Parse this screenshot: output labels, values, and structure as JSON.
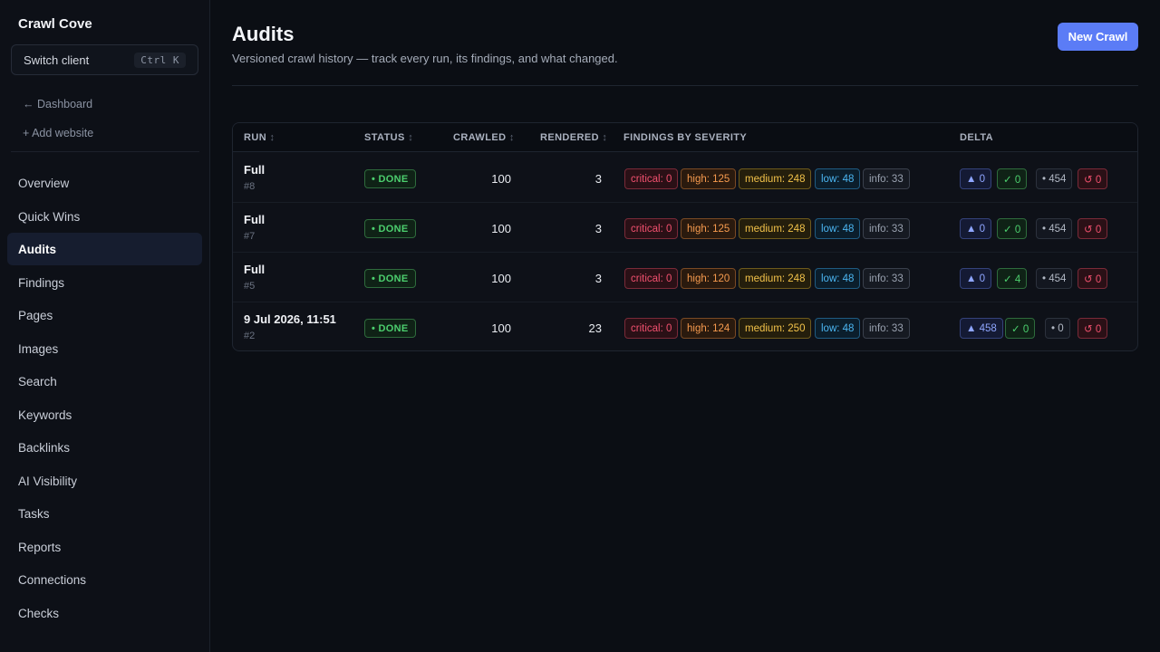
{
  "brand": "Crawl Cove",
  "switch_client": {
    "label": "Switch client",
    "shortcut": "Ctrl K"
  },
  "sub_links": {
    "dashboard": "← Dashboard",
    "add_website": "+ Add website"
  },
  "nav": [
    {
      "label": "Overview",
      "active": false
    },
    {
      "label": "Quick Wins",
      "active": false
    },
    {
      "label": "Audits",
      "active": true
    },
    {
      "label": "Findings",
      "active": false
    },
    {
      "label": "Pages",
      "active": false
    },
    {
      "label": "Images",
      "active": false
    },
    {
      "label": "Search",
      "active": false
    },
    {
      "label": "Keywords",
      "active": false
    },
    {
      "label": "Backlinks",
      "active": false
    },
    {
      "label": "AI Visibility",
      "active": false
    },
    {
      "label": "Tasks",
      "active": false
    },
    {
      "label": "Reports",
      "active": false
    },
    {
      "label": "Connections",
      "active": false
    },
    {
      "label": "Checks",
      "active": false
    }
  ],
  "page": {
    "title": "Audits",
    "subtitle": "Versioned crawl history — track every run, its findings, and what changed.",
    "new_crawl": "New Crawl"
  },
  "table": {
    "headers": {
      "run": "RUN",
      "status": "STATUS",
      "crawled": "CRAWLED",
      "rendered": "RENDERED",
      "findings": "FINDINGS BY SEVERITY",
      "delta": "DELTA",
      "sort_glyph": "↕"
    },
    "rows": [
      {
        "title": "Full",
        "num": "#8",
        "status": "• DONE",
        "crawled": "100",
        "rendered": "3",
        "critical": "critical: 0",
        "high": "high: 125",
        "medium": "medium: 248",
        "low": "low: 48",
        "info": "info: 33",
        "d_new": "▲ 0",
        "d_fixed": "✓ 0",
        "d_persist": "• 454",
        "d_regress": "↺ 0"
      },
      {
        "title": "Full",
        "num": "#7",
        "status": "• DONE",
        "crawled": "100",
        "rendered": "3",
        "critical": "critical: 0",
        "high": "high: 125",
        "medium": "medium: 248",
        "low": "low: 48",
        "info": "info: 33",
        "d_new": "▲ 0",
        "d_fixed": "✓ 0",
        "d_persist": "• 454",
        "d_regress": "↺ 0"
      },
      {
        "title": "Full",
        "num": "#5",
        "status": "• DONE",
        "crawled": "100",
        "rendered": "3",
        "critical": "critical: 0",
        "high": "high: 120",
        "medium": "medium: 248",
        "low": "low: 48",
        "info": "info: 33",
        "d_new": "▲ 0",
        "d_fixed": "✓ 4",
        "d_persist": "• 454",
        "d_regress": "↺ 0"
      },
      {
        "title": "9 Jul 2026, 11:51",
        "num": "#2",
        "status": "• DONE",
        "crawled": "100",
        "rendered": "23",
        "critical": "critical: 0",
        "high": "high: 124",
        "medium": "medium: 250",
        "low": "low: 48",
        "info": "info: 33",
        "d_new": "▲ 458",
        "d_fixed": "✓ 0",
        "d_persist": "• 0",
        "d_regress": "↺ 0"
      }
    ]
  }
}
